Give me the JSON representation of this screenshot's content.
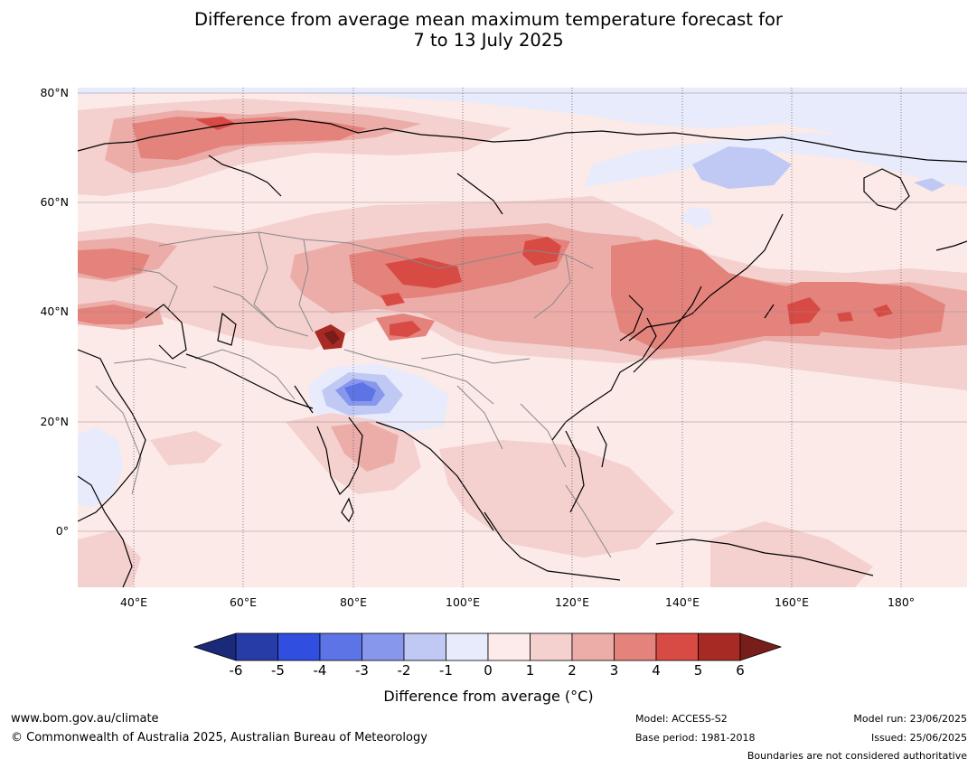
{
  "title": {
    "line1": "Difference from average mean maximum temperature forecast for",
    "line2": "7 to 13 July 2025"
  },
  "map": {
    "lat_labels": [
      "80°N",
      "60°N",
      "40°N",
      "20°N",
      "0°"
    ],
    "lon_labels": [
      "40°E",
      "60°E",
      "80°E",
      "100°E",
      "120°E",
      "140°E",
      "160°E",
      "180°"
    ],
    "lat_range": [
      -10,
      80
    ],
    "lon_range": [
      30,
      192
    ],
    "background_color": "#fbeae8",
    "gridline_color": "#a08a8a",
    "coastline_color": "#000000",
    "border_color": "#888888"
  },
  "colorbar": {
    "ticks": [
      "-6",
      "-5",
      "-4",
      "-3",
      "-2",
      "-1",
      "0",
      "1",
      "2",
      "3",
      "4",
      "5",
      "6"
    ],
    "colors": [
      "#283ca8",
      "#304ee0",
      "#5c74e6",
      "#8798ec",
      "#c0c9f4",
      "#e8ebfb",
      "#fcebea",
      "#f4d0cf",
      "#ecada9",
      "#e4827c",
      "#d84a44",
      "#a82a24"
    ],
    "low_extend_color": "#1a2a78",
    "high_extend_color": "#781e1a",
    "label": "Difference from average (°C)"
  },
  "footer": {
    "website": "www.bom.gov.au/climate",
    "copyright": "© Commonwealth of Australia 2025, Australian Bureau of Meteorology",
    "model": "Model: ACCESS-S2",
    "base_period": "Base period: 1981-2018",
    "model_run": "Model run: 23/06/2025",
    "issued": "Issued: 25/06/2025",
    "disclaimer": "Boundaries are not considered authoritative"
  }
}
